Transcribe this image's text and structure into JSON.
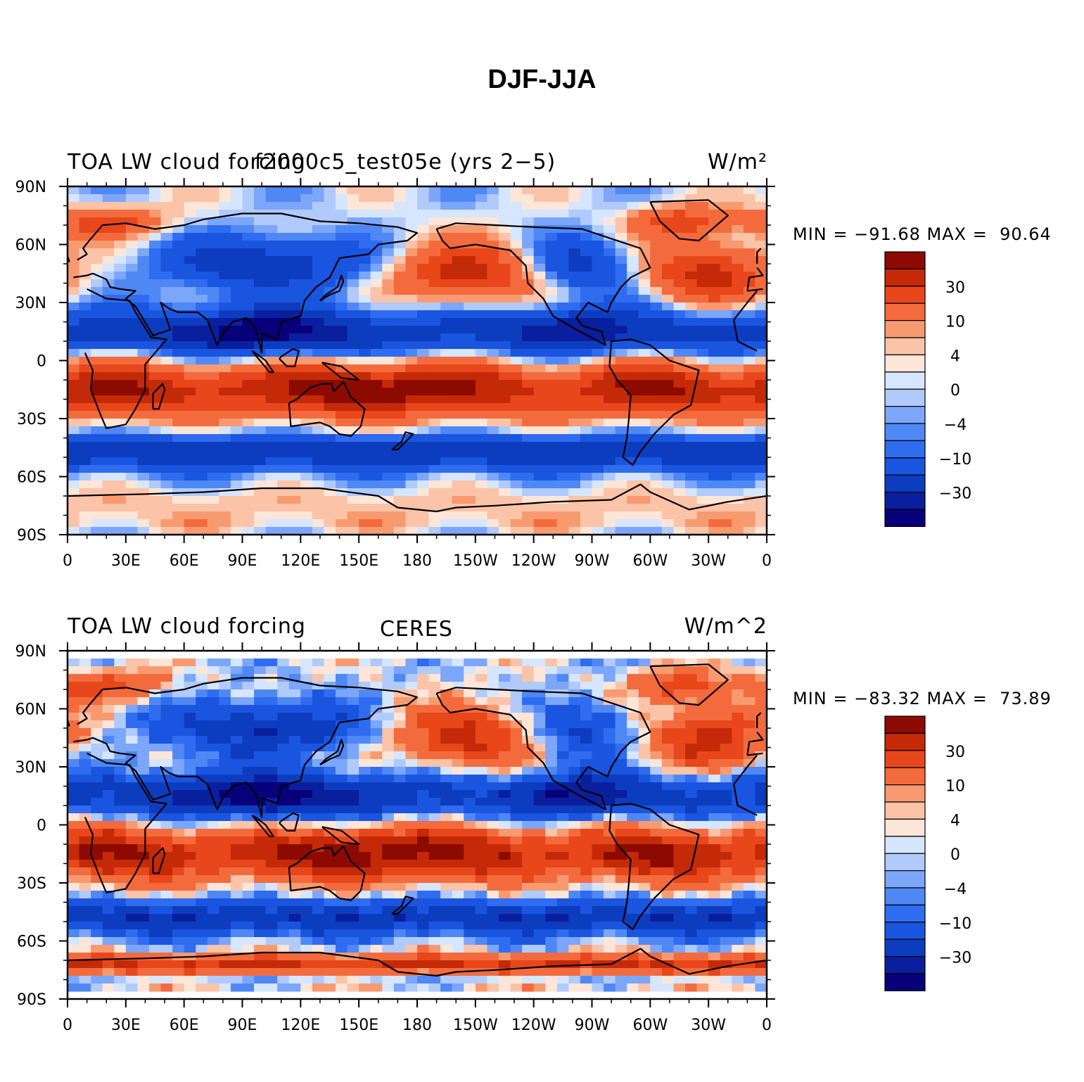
{
  "title": "DJF-JJA",
  "colorbar": {
    "colors": [
      "#08007a",
      "#0a1f9e",
      "#0d3dbf",
      "#1a55e0",
      "#2f6cf0",
      "#4f88f5",
      "#7ba6fa",
      "#b0cafc",
      "#d6e6ff",
      "#fde6d8",
      "#fbc3a8",
      "#f89a70",
      "#f36b3d",
      "#e8471b",
      "#c42a07",
      "#8c0a00"
    ],
    "labels": [
      "30",
      "10",
      "4",
      "0",
      "−4",
      "−10",
      "−30"
    ]
  },
  "panels": [
    {
      "left_label": "TOA LW cloud forcing",
      "center_label": "f2000c5_test05e (yrs 2−5)",
      "right_label": "W/m²",
      "minmax": "MIN = −91.68 MAX =  90.64",
      "lat_ticks": [
        "90N",
        "60N",
        "30N",
        "0",
        "30S",
        "60S",
        "90S"
      ],
      "lon_ticks": [
        "0",
        "30E",
        "60E",
        "90E",
        "120E",
        "150E",
        "180",
        "150W",
        "120W",
        "90W",
        "60W",
        "30W",
        "0"
      ]
    },
    {
      "left_label": "TOA LW cloud forcing",
      "center_label": "CERES",
      "right_label": "W/m^2",
      "minmax": "MIN = −83.32 MAX =  73.89",
      "lat_ticks": [
        "90N",
        "60N",
        "30N",
        "0",
        "30S",
        "60S",
        "90S"
      ],
      "lon_ticks": [
        "0",
        "30E",
        "60E",
        "90E",
        "120E",
        "150E",
        "180",
        "150W",
        "120W",
        "90W",
        "60W",
        "30W",
        "0"
      ]
    }
  ],
  "chart_data": [
    {
      "type": "heatmap",
      "title": "TOA LW cloud forcing",
      "subtitle": "f2000c5_test05e (yrs 2−5)",
      "units": "W/m²",
      "min": -91.68,
      "max": 90.64,
      "xlim": [
        0,
        360
      ],
      "ylim": [
        -90,
        90
      ],
      "legend": "right",
      "color_levels": [
        -50,
        -40,
        -30,
        -20,
        -10,
        -7,
        -4,
        -2,
        0,
        2,
        4,
        7,
        10,
        20,
        30,
        40,
        50
      ],
      "colorbar_tick_labels": [
        "30",
        "10",
        "4",
        "0",
        "−4",
        "−10",
        "−30"
      ]
    },
    {
      "type": "heatmap",
      "title": "TOA LW cloud forcing",
      "subtitle": "CERES",
      "units": "W/m^2",
      "min": -83.32,
      "max": 73.89,
      "xlim": [
        0,
        360
      ],
      "ylim": [
        -90,
        90
      ],
      "legend": "right",
      "color_levels": [
        -50,
        -40,
        -30,
        -20,
        -10,
        -7,
        -4,
        -2,
        0,
        2,
        4,
        7,
        10,
        20,
        30,
        40,
        50
      ],
      "colorbar_tick_labels": [
        "30",
        "10",
        "4",
        "0",
        "−4",
        "−10",
        "−30"
      ]
    }
  ]
}
